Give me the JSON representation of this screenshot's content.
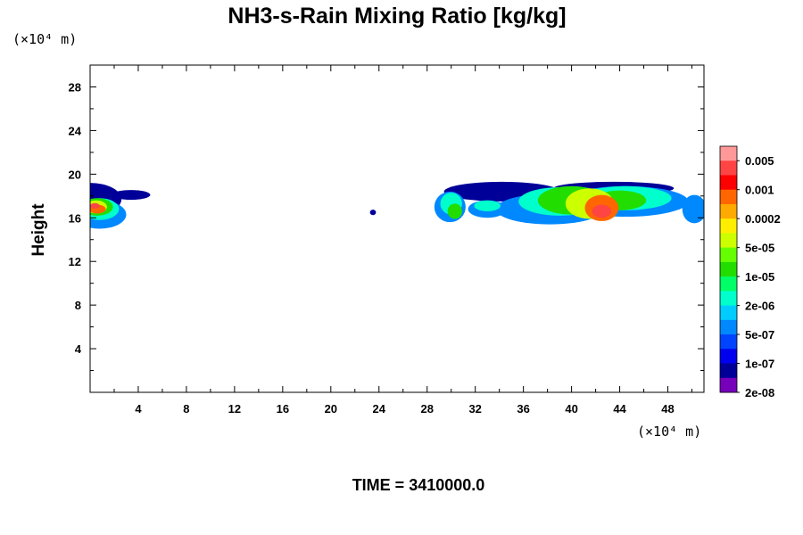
{
  "chart_data": {
    "type": "heatmap",
    "title": "NH3-s-Rain Mixing Ratio [kg/kg]",
    "ylabel": "Height",
    "x_unit": "(×10⁴ m)",
    "y_unit": "(×10⁴ m)",
    "xlim": [
      0,
      51
    ],
    "ylim": [
      0,
      30
    ],
    "x_ticks": [
      "4",
      "8",
      "12",
      "16",
      "20",
      "24",
      "28",
      "32",
      "36",
      "40",
      "44",
      "48"
    ],
    "y_ticks": [
      "4",
      "8",
      "12",
      "16",
      "20",
      "24",
      "28"
    ],
    "colorbar": {
      "labels": [
        "0.005",
        "0.001",
        "0.0002",
        "5e-05",
        "1e-05",
        "2e-06",
        "5e-07",
        "1e-07",
        "2e-08"
      ],
      "colors": [
        "#ff9999",
        "#ff4444",
        "#ff0000",
        "#ff6600",
        "#ffaa00",
        "#ffee00",
        "#ccff00",
        "#66ff00",
        "#22dd00",
        "#00ff66",
        "#00ffcc",
        "#00ccff",
        "#0088ff",
        "#0044ff",
        "#0000ee",
        "#000099",
        "#7700bb"
      ]
    },
    "regions": [
      {
        "level": 15,
        "blobs": [
          [
            0.0,
            17.7,
            2.6,
            1.5
          ],
          [
            3.4,
            18.1,
            1.6,
            0.45
          ],
          [
            23.5,
            16.5,
            0.25,
            0.25
          ],
          [
            34.2,
            18.4,
            4.8,
            0.9
          ],
          [
            43.5,
            18.7,
            5.0,
            0.6
          ]
        ]
      },
      {
        "level": 12,
        "blobs": [
          [
            0.8,
            16.3,
            2.2,
            1.3
          ],
          [
            29.9,
            17.0,
            1.3,
            1.4
          ],
          [
            33.0,
            16.8,
            1.6,
            0.8
          ],
          [
            36.2,
            16.2,
            0.8,
            0.6
          ],
          [
            38.2,
            16.8,
            4.5,
            1.4
          ],
          [
            44.5,
            17.5,
            5.2,
            1.4
          ],
          [
            50.2,
            16.8,
            1.0,
            1.3
          ]
        ]
      },
      {
        "level": 10,
        "blobs": [
          [
            0.8,
            16.8,
            1.6,
            1.0
          ],
          [
            30.0,
            17.3,
            0.9,
            1.0
          ],
          [
            33.0,
            17.1,
            1.1,
            0.5
          ],
          [
            39.0,
            17.5,
            3.4,
            1.3
          ],
          [
            44.5,
            17.8,
            3.8,
            1.1
          ]
        ]
      },
      {
        "level": 8,
        "blobs": [
          [
            0.6,
            17.0,
            1.3,
            0.8
          ],
          [
            30.3,
            16.6,
            0.6,
            0.7
          ],
          [
            40.0,
            17.6,
            2.8,
            1.3
          ],
          [
            44.0,
            17.6,
            2.2,
            0.9
          ]
        ]
      },
      {
        "level": 6,
        "blobs": [
          [
            0.5,
            17.0,
            0.9,
            0.6
          ],
          [
            41.5,
            17.3,
            2.0,
            1.4
          ]
        ]
      },
      {
        "level": 3,
        "blobs": [
          [
            0.6,
            16.8,
            0.7,
            0.4
          ],
          [
            42.5,
            16.9,
            1.4,
            1.2
          ]
        ]
      },
      {
        "level": 1,
        "blobs": [
          [
            0.4,
            17.1,
            0.4,
            0.25
          ],
          [
            42.5,
            16.6,
            0.8,
            0.6
          ]
        ]
      }
    ]
  },
  "footer": "TIME = 3410000.0"
}
